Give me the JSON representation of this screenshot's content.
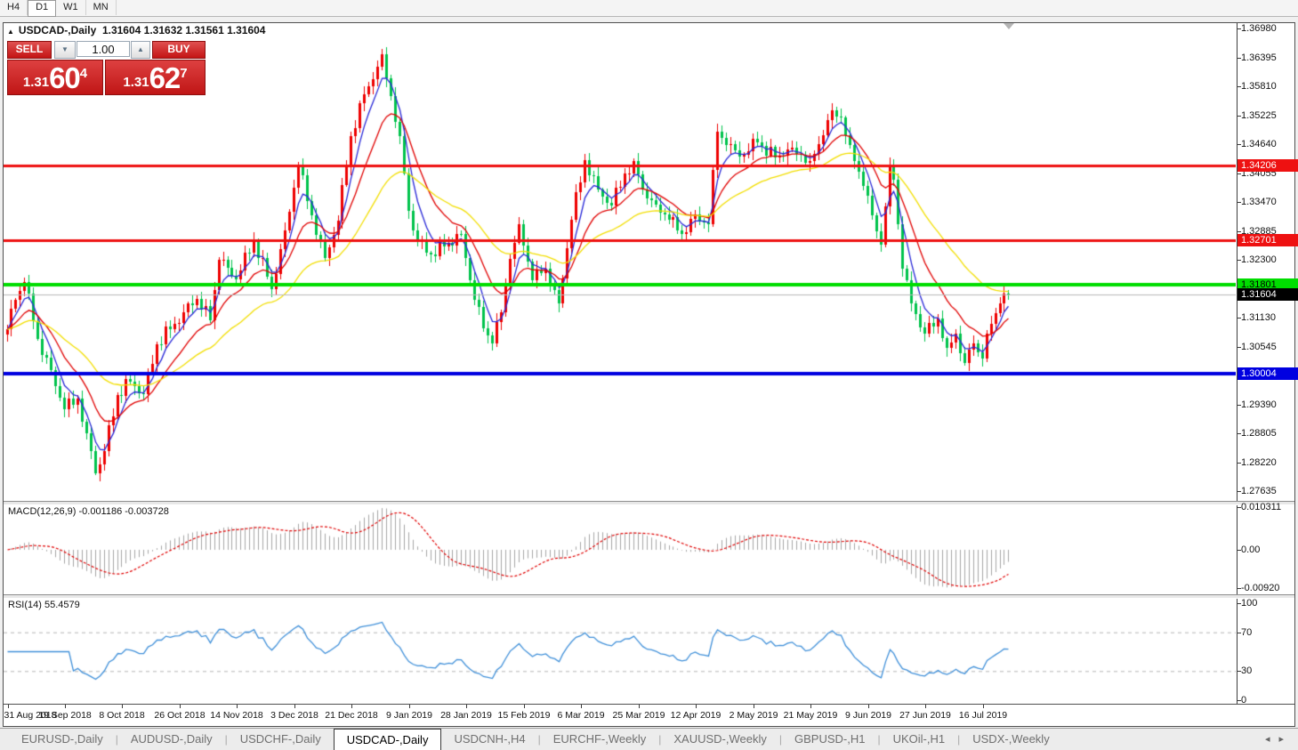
{
  "toolbar": {
    "buttons": [
      "H4",
      "D1",
      "W1",
      "MN"
    ],
    "active": "D1"
  },
  "chart_header": {
    "collapse_icon": "▲",
    "symbol": "USDCAD-,Daily",
    "ohlc": "1.31604 1.31632 1.31561 1.31604"
  },
  "quote_panel": {
    "sell_label": "SELL",
    "buy_label": "BUY",
    "volume": "1.00",
    "down_glyph": "▼",
    "up_glyph": "▲",
    "sell_price": {
      "small": "1.31",
      "big": "60",
      "sup": "4"
    },
    "buy_price": {
      "small": "1.31",
      "big": "62",
      "sup": "7"
    }
  },
  "indicators": {
    "macd": {
      "name": "MACD(12,26,9)",
      "values": "-0.001186 -0.003728"
    },
    "rsi": {
      "name": "RSI(14)",
      "value": "55.4579"
    }
  },
  "tabbar": {
    "tabs": [
      "EURUSD-,Daily",
      "AUDUSD-,Daily",
      "USDCHF-,Daily",
      "USDCAD-,Daily",
      "USDCNH-,H4",
      "EURCHF-,Weekly",
      "XAUUSD-,Weekly",
      "GBPUSD-,H1",
      "UKOil-,H1",
      "USDX-,Weekly"
    ],
    "active": "USDCAD-,Daily",
    "scroll_left": "◂",
    "scroll_right": "▸"
  },
  "chart_data": {
    "type": "candlestick",
    "symbol": "USDCAD",
    "timeframe": "Daily",
    "current_price": 1.31604,
    "price_axis": {
      "top_value": 1.3698,
      "range": 0.09345,
      "ticks": [
        {
          "step": 0,
          "label": "1.36980"
        },
        {
          "step": 1,
          "label": "1.36395"
        },
        {
          "step": 2,
          "label": "1.35810"
        },
        {
          "step": 3,
          "label": "1.35225"
        },
        {
          "step": 4,
          "label": "1.34640"
        },
        {
          "step": 5,
          "label": "1.34055"
        },
        {
          "step": 6,
          "label": "1.33470"
        },
        {
          "step": 7,
          "label": "1.32885"
        },
        {
          "step": 8,
          "label": "1.32300"
        },
        {
          "step": 10,
          "label": "1.31130"
        },
        {
          "step": 11,
          "label": "1.30545"
        },
        {
          "step": 13,
          "label": "1.29390"
        },
        {
          "step": 14,
          "label": "1.28805"
        },
        {
          "step": 15,
          "label": "1.28220"
        },
        {
          "step": 16,
          "label": "1.27635"
        }
      ]
    },
    "hlines": [
      {
        "price": 1.34206,
        "label": "1.34206",
        "color": "#ee1111",
        "badge_bg": "#ee1111",
        "badge_fg": "#ffffff",
        "thickness": 3
      },
      {
        "price": 1.32701,
        "label": "1.32701",
        "color": "#ee1111",
        "badge_bg": "#ee1111",
        "badge_fg": "#ffffff",
        "thickness": 3
      },
      {
        "price": 1.31801,
        "label": "1.31801",
        "color": "#00dd00",
        "badge_bg": "#00dd00",
        "badge_fg": "#000000",
        "thickness": 4
      },
      {
        "price": 1.30004,
        "label": "1.30004",
        "color": "#0000e0",
        "badge_bg": "#0000e0",
        "badge_fg": "#ffffff",
        "thickness": 4
      },
      {
        "price": 1.31604,
        "label": "1.31604",
        "color": "#b9b9b9",
        "badge_bg": "#000000",
        "badge_fg": "#ffffff",
        "thickness": 1
      }
    ],
    "date_axis": {
      "labels": [
        "31 Aug 2018",
        "19 Sep 2018",
        "8 Oct 2018",
        "26 Oct 2018",
        "14 Nov 2018",
        "3 Dec 2018",
        "21 Dec 2018",
        "9 Jan 2019",
        "28 Jan 2019",
        "15 Feb 2019",
        "6 Mar 2019",
        "25 Mar 2019",
        "12 Apr 2019",
        "2 May 2019",
        "21 May 2019",
        "9 Jun 2019",
        "27 Jun 2019",
        "16 Jul 2019"
      ],
      "bars_per_label": 13
    },
    "bar_count": 228,
    "close_anchors": [
      [
        0,
        1.309
      ],
      [
        2,
        1.315
      ],
      [
        4,
        1.3185
      ],
      [
        7,
        1.307
      ],
      [
        10,
        1.3008
      ],
      [
        13,
        1.2928
      ],
      [
        16,
        1.295
      ],
      [
        18,
        1.288
      ],
      [
        20,
        1.28
      ],
      [
        22,
        1.2845
      ],
      [
        25,
        1.2958
      ],
      [
        28,
        1.2985
      ],
      [
        31,
        1.296
      ],
      [
        34,
        1.306
      ],
      [
        37,
        1.309
      ],
      [
        40,
        1.3125
      ],
      [
        43,
        1.3152
      ],
      [
        46,
        1.3108
      ],
      [
        48,
        1.323
      ],
      [
        52,
        1.3192
      ],
      [
        56,
        1.327
      ],
      [
        60,
        1.3172
      ],
      [
        63,
        1.329
      ],
      [
        66,
        1.342
      ],
      [
        69,
        1.332
      ],
      [
        72,
        1.3235
      ],
      [
        75,
        1.331
      ],
      [
        78,
        1.348
      ],
      [
        81,
        1.3565
      ],
      [
        84,
        1.362
      ],
      [
        85,
        1.3645
      ],
      [
        87,
        1.3562
      ],
      [
        89,
        1.348
      ],
      [
        91,
        1.333
      ],
      [
        93,
        1.3268
      ],
      [
        96,
        1.3242
      ],
      [
        99,
        1.3258
      ],
      [
        103,
        1.3282
      ],
      [
        106,
        1.315
      ],
      [
        108,
        1.3092
      ],
      [
        110,
        1.3062
      ],
      [
        112,
        1.3125
      ],
      [
        114,
        1.3232
      ],
      [
        116,
        1.3302
      ],
      [
        119,
        1.319
      ],
      [
        122,
        1.3212
      ],
      [
        125,
        1.3142
      ],
      [
        128,
        1.3312
      ],
      [
        131,
        1.3432
      ],
      [
        134,
        1.3372
      ],
      [
        137,
        1.334
      ],
      [
        140,
        1.3405
      ],
      [
        142,
        1.343
      ],
      [
        144,
        1.3372
      ],
      [
        147,
        1.3342
      ],
      [
        150,
        1.3312
      ],
      [
        153,
        1.3282
      ],
      [
        156,
        1.3322
      ],
      [
        159,
        1.3302
      ],
      [
        161,
        1.349
      ],
      [
        163,
        1.3462
      ],
      [
        166,
        1.344
      ],
      [
        170,
        1.3468
      ],
      [
        174,
        1.3438
      ],
      [
        178,
        1.3458
      ],
      [
        182,
        1.343
      ],
      [
        185,
        1.3482
      ],
      [
        187,
        1.3532
      ],
      [
        189,
        1.3518
      ],
      [
        191,
        1.3462
      ],
      [
        194,
        1.338
      ],
      [
        196,
        1.332
      ],
      [
        198,
        1.3262
      ],
      [
        200,
        1.3422
      ],
      [
        201,
        1.3392
      ],
      [
        203,
        1.3212
      ],
      [
        205,
        1.3142
      ],
      [
        208,
        1.3082
      ],
      [
        211,
        1.3112
      ],
      [
        213,
        1.3052
      ],
      [
        215,
        1.3082
      ],
      [
        217,
        1.3022
      ],
      [
        219,
        1.3062
      ],
      [
        221,
        1.3032
      ],
      [
        223,
        1.3102
      ],
      [
        225,
        1.3142
      ],
      [
        227,
        1.31604
      ]
    ],
    "moving_averages": [
      {
        "type": "ema",
        "period": 5,
        "color": "#2828d7"
      },
      {
        "type": "ema",
        "period": 13,
        "color": "#e00000"
      },
      {
        "type": "ema",
        "period": 34,
        "color": "#f2de00"
      }
    ],
    "macd": {
      "params": [
        12,
        26,
        9
      ],
      "axis": [
        {
          "v": 0.010311,
          "label": "0.010311"
        },
        {
          "v": 0.0,
          "label": "0.00"
        },
        {
          "v": -0.0092,
          "label": "-0.00920"
        }
      ]
    },
    "rsi": {
      "period": 14,
      "axis": [
        {
          "v": 100,
          "label": "100"
        },
        {
          "v": 70,
          "label": "70"
        },
        {
          "v": 30,
          "label": "30"
        },
        {
          "v": 0,
          "label": "0"
        }
      ],
      "levels": [
        70,
        30
      ]
    },
    "colors": {
      "bull": "#ee0000",
      "bear": "#00c34c",
      "macd_hist": "#a6a6a6",
      "macd_signal": "#e00000",
      "rsi_line": "#4090d9",
      "rsi_level": "#b5b5b5",
      "background": "#ffffff"
    }
  }
}
